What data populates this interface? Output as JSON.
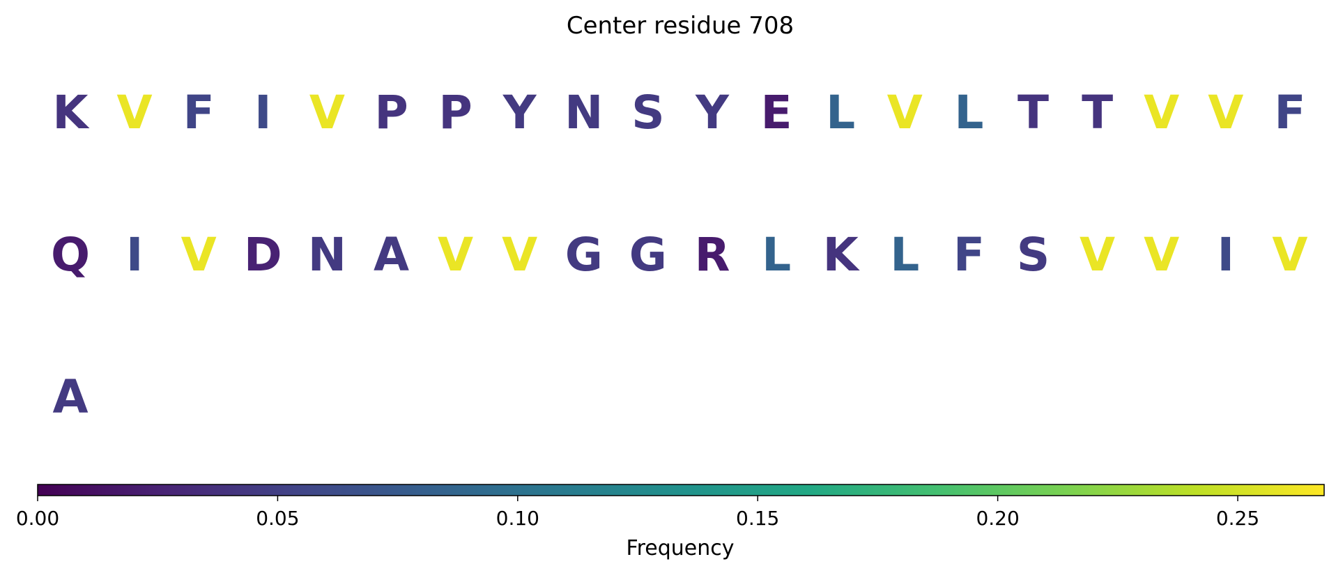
{
  "chart_data": {
    "type": "table",
    "title": "Center residue 708",
    "residues": [
      {
        "letter": "K",
        "value": 0.04
      },
      {
        "letter": "V",
        "value": 0.26
      },
      {
        "letter": "F",
        "value": 0.055
      },
      {
        "letter": "I",
        "value": 0.06
      },
      {
        "letter": "V",
        "value": 0.26
      },
      {
        "letter": "P",
        "value": 0.04
      },
      {
        "letter": "P",
        "value": 0.04
      },
      {
        "letter": "Y",
        "value": 0.045
      },
      {
        "letter": "N",
        "value": 0.045
      },
      {
        "letter": "S",
        "value": 0.045
      },
      {
        "letter": "Y",
        "value": 0.045
      },
      {
        "letter": "E",
        "value": 0.02
      },
      {
        "letter": "L",
        "value": 0.085
      },
      {
        "letter": "V",
        "value": 0.26
      },
      {
        "letter": "L",
        "value": 0.085
      },
      {
        "letter": "T",
        "value": 0.04
      },
      {
        "letter": "T",
        "value": 0.04
      },
      {
        "letter": "V",
        "value": 0.26
      },
      {
        "letter": "V",
        "value": 0.26
      },
      {
        "letter": "F",
        "value": 0.055
      },
      {
        "letter": "Q",
        "value": 0.02
      },
      {
        "letter": "I",
        "value": 0.06
      },
      {
        "letter": "V",
        "value": 0.26
      },
      {
        "letter": "D",
        "value": 0.025
      },
      {
        "letter": "N",
        "value": 0.045
      },
      {
        "letter": "A",
        "value": 0.045
      },
      {
        "letter": "V",
        "value": 0.26
      },
      {
        "letter": "V",
        "value": 0.26
      },
      {
        "letter": "G",
        "value": 0.045
      },
      {
        "letter": "G",
        "value": 0.045
      },
      {
        "letter": "R",
        "value": 0.02
      },
      {
        "letter": "L",
        "value": 0.085
      },
      {
        "letter": "K",
        "value": 0.04
      },
      {
        "letter": "L",
        "value": 0.085
      },
      {
        "letter": "F",
        "value": 0.055
      },
      {
        "letter": "S",
        "value": 0.045
      },
      {
        "letter": "V",
        "value": 0.26
      },
      {
        "letter": "V",
        "value": 0.26
      },
      {
        "letter": "I",
        "value": 0.06
      },
      {
        "letter": "V",
        "value": 0.26
      },
      {
        "letter": "A",
        "value": 0.045
      }
    ],
    "letters_per_row": 20,
    "colorbar": {
      "label": "Frequency",
      "colormap": "viridis",
      "range": [
        0,
        0.268
      ],
      "ticks": [
        0.0,
        0.05,
        0.1,
        0.15,
        0.2,
        0.25
      ],
      "tick_labels": [
        "0.00",
        "0.05",
        "0.10",
        "0.15",
        "0.20",
        "0.25"
      ],
      "orientation": "horizontal",
      "placement": "bottom"
    }
  }
}
